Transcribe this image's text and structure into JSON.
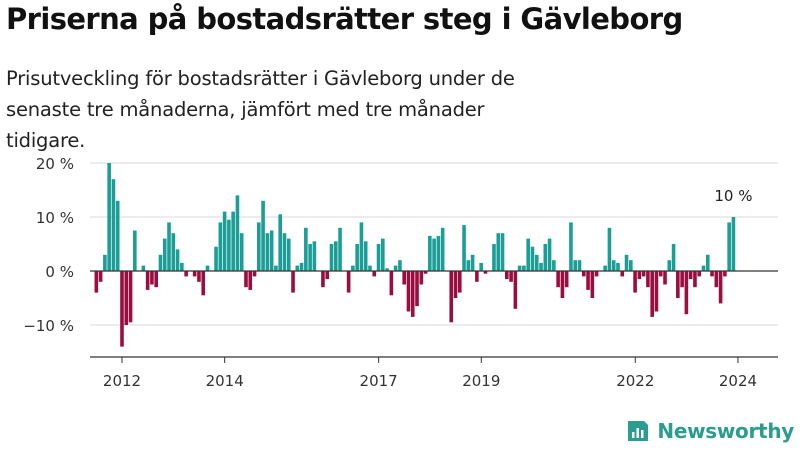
{
  "title": "Priserna på bostadsrätter steg i Gävleborg",
  "subtitle": "Prisutveckling för bostadsrätter i Gävleborg under de senaste tre månaderna, jämfört med tre månader tidigare.",
  "brand": {
    "name": "Newsworthy",
    "icon": "newsworthy-logo-icon",
    "color": "#2a9d8f"
  },
  "colors": {
    "positive": "#1a9e96",
    "negative": "#9b0d3f",
    "grid": "#d9d9d9",
    "axis": "#333333"
  },
  "chart_data": {
    "type": "bar",
    "title": "",
    "xlabel": "",
    "ylabel": "",
    "ylim": [
      -15,
      22
    ],
    "yticks": [
      -10,
      0,
      10,
      20
    ],
    "ytick_labels": [
      "−10 %",
      "0 %",
      "10 %",
      "20 %"
    ],
    "xticks": [
      2012,
      2014,
      2017,
      2019,
      2022,
      2024
    ],
    "xtick_labels": [
      "2012",
      "2014",
      "2017",
      "2019",
      "2022",
      "2024"
    ],
    "x_start": 2011.5,
    "x_step": 0.0833,
    "grid": true,
    "annotation": {
      "text": "10 %",
      "target": "last"
    },
    "values": [
      -4,
      -2,
      3,
      20,
      17,
      13,
      -14,
      -10,
      -9.5,
      7.5,
      0,
      1,
      -3.5,
      -2.5,
      -3,
      3,
      6,
      9,
      7,
      4,
      1.5,
      -1,
      0,
      -1,
      -2,
      -4.5,
      1,
      0,
      4.5,
      9,
      11,
      9.5,
      11,
      14,
      7,
      -3,
      -3.5,
      -1,
      9,
      13,
      7,
      7.5,
      1,
      10.5,
      7,
      6,
      -4,
      1,
      1.5,
      8,
      5,
      5.5,
      0,
      -3,
      -1.5,
      5,
      5.5,
      8,
      0,
      -4,
      1,
      5,
      9,
      5.5,
      1,
      -1,
      5,
      6,
      0.5,
      -4.5,
      1,
      2,
      -2.5,
      -7.5,
      -8.5,
      -6.5,
      -2.5,
      -0.5,
      6.5,
      6,
      6.5,
      8,
      0,
      -9.5,
      -5,
      -4,
      8.5,
      2,
      3,
      -2,
      1.5,
      -0.5,
      0,
      5,
      7,
      7,
      -1.5,
      -2,
      -7,
      1,
      1,
      6,
      4.5,
      3,
      1.5,
      5,
      6,
      2,
      -3,
      -5,
      -3,
      9,
      2,
      2,
      -1,
      -3.5,
      -5,
      -1,
      0,
      1,
      8,
      2,
      1.5,
      -1,
      3,
      2,
      -4,
      -1.5,
      -1,
      -3,
      -8.5,
      -7.5,
      -1,
      -2.5,
      2,
      5,
      -5,
      -3,
      -8,
      -1.5,
      -3,
      -1,
      1,
      3,
      -1,
      -3,
      -6,
      -1,
      9,
      10
    ]
  }
}
